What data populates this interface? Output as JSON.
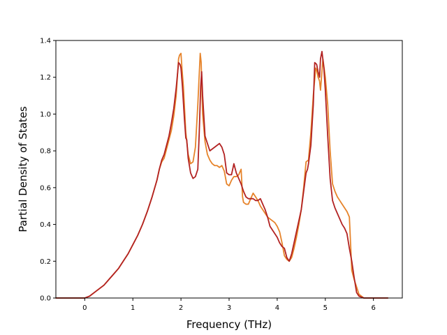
{
  "chart_data": {
    "type": "line",
    "title": "",
    "xlabel": "Frequency (THz)",
    "ylabel": "Partial Density of States",
    "xlim": [
      -0.6,
      6.6
    ],
    "ylim": [
      0.0,
      1.4
    ],
    "xticks": [
      0,
      1,
      2,
      3,
      4,
      5,
      6
    ],
    "xtick_labels": [
      "0",
      "1",
      "2",
      "3",
      "4",
      "5",
      "6"
    ],
    "yticks": [
      0.0,
      0.2,
      0.4,
      0.6,
      0.8,
      1.0,
      1.2,
      1.4
    ],
    "ytick_labels": [
      "0.0",
      "0.2",
      "0.4",
      "0.6",
      "0.8",
      "1.0",
      "1.2",
      "1.4"
    ],
    "grid": false,
    "legend": "none",
    "series": [
      {
        "color": "#e6832a",
        "x": [
          -0.6,
          0.0,
          0.05,
          0.1,
          0.2,
          0.3,
          0.4,
          0.5,
          0.6,
          0.7,
          0.8,
          0.9,
          1.0,
          1.1,
          1.2,
          1.3,
          1.4,
          1.5,
          1.55,
          1.6,
          1.65,
          1.7,
          1.75,
          1.8,
          1.85,
          1.9,
          1.95,
          1.97,
          2.0,
          2.02,
          2.05,
          2.1,
          2.15,
          2.2,
          2.25,
          2.3,
          2.35,
          2.4,
          2.42,
          2.45,
          2.5,
          2.55,
          2.6,
          2.65,
          2.7,
          2.75,
          2.8,
          2.85,
          2.9,
          2.95,
          3.0,
          3.05,
          3.1,
          3.15,
          3.2,
          3.25,
          3.28,
          3.3,
          3.35,
          3.4,
          3.45,
          3.5,
          3.55,
          3.6,
          3.65,
          3.7,
          3.75,
          3.8,
          3.85,
          3.9,
          3.95,
          4.0,
          4.05,
          4.1,
          4.15,
          4.2,
          4.25,
          4.3,
          4.35,
          4.4,
          4.45,
          4.5,
          4.55,
          4.6,
          4.65,
          4.7,
          4.75,
          4.8,
          4.82,
          4.85,
          4.88,
          4.9,
          4.95,
          5.0,
          5.05,
          5.1,
          5.15,
          5.2,
          5.25,
          5.3,
          5.35,
          5.4,
          5.45,
          5.5,
          5.55,
          5.6,
          5.65,
          5.7,
          5.75,
          5.8,
          6.3
        ],
        "values": [
          0.0,
          0.0,
          0.005,
          0.01,
          0.03,
          0.05,
          0.07,
          0.1,
          0.13,
          0.16,
          0.2,
          0.24,
          0.29,
          0.34,
          0.4,
          0.47,
          0.55,
          0.64,
          0.7,
          0.74,
          0.76,
          0.81,
          0.86,
          0.91,
          0.99,
          1.1,
          1.3,
          1.32,
          1.33,
          1.25,
          1.15,
          0.9,
          0.78,
          0.73,
          0.74,
          0.82,
          1.05,
          1.33,
          1.28,
          1.0,
          0.85,
          0.78,
          0.75,
          0.73,
          0.72,
          0.72,
          0.71,
          0.72,
          0.69,
          0.62,
          0.61,
          0.64,
          0.66,
          0.66,
          0.67,
          0.7,
          0.55,
          0.52,
          0.51,
          0.51,
          0.54,
          0.57,
          0.55,
          0.53,
          0.5,
          0.48,
          0.46,
          0.44,
          0.43,
          0.42,
          0.41,
          0.39,
          0.36,
          0.3,
          0.23,
          0.21,
          0.2,
          0.22,
          0.27,
          0.33,
          0.4,
          0.48,
          0.6,
          0.74,
          0.75,
          0.9,
          1.1,
          1.25,
          1.24,
          1.2,
          1.18,
          1.13,
          1.3,
          1.2,
          1.05,
          0.8,
          0.62,
          0.58,
          0.55,
          0.53,
          0.51,
          0.49,
          0.47,
          0.44,
          0.15,
          0.1,
          0.06,
          0.02,
          0.01,
          0.0,
          0.0
        ]
      },
      {
        "color": "#b22222",
        "x": [
          -0.6,
          0.0,
          0.05,
          0.1,
          0.2,
          0.3,
          0.4,
          0.5,
          0.6,
          0.7,
          0.8,
          0.9,
          1.0,
          1.1,
          1.2,
          1.3,
          1.4,
          1.5,
          1.55,
          1.6,
          1.65,
          1.7,
          1.75,
          1.8,
          1.85,
          1.9,
          1.95,
          1.98,
          2.0,
          2.03,
          2.07,
          2.1,
          2.12,
          2.15,
          2.2,
          2.25,
          2.3,
          2.35,
          2.38,
          2.41,
          2.43,
          2.45,
          2.5,
          2.55,
          2.6,
          2.65,
          2.7,
          2.75,
          2.8,
          2.85,
          2.9,
          2.95,
          3.0,
          3.05,
          3.1,
          3.15,
          3.2,
          3.25,
          3.3,
          3.35,
          3.4,
          3.45,
          3.5,
          3.55,
          3.6,
          3.65,
          3.7,
          3.75,
          3.8,
          3.85,
          3.9,
          3.95,
          4.0,
          4.05,
          4.1,
          4.15,
          4.2,
          4.25,
          4.3,
          4.35,
          4.4,
          4.45,
          4.5,
          4.55,
          4.6,
          4.63,
          4.65,
          4.7,
          4.75,
          4.78,
          4.82,
          4.85,
          4.88,
          4.9,
          4.93,
          4.97,
          5.0,
          5.05,
          5.1,
          5.15,
          5.2,
          5.25,
          5.3,
          5.35,
          5.4,
          5.45,
          5.5,
          5.55,
          5.6,
          5.65,
          5.7,
          5.8,
          6.3
        ],
        "values": [
          0.0,
          0.0,
          0.005,
          0.01,
          0.03,
          0.05,
          0.07,
          0.1,
          0.13,
          0.16,
          0.2,
          0.24,
          0.29,
          0.34,
          0.4,
          0.47,
          0.55,
          0.64,
          0.7,
          0.75,
          0.78,
          0.83,
          0.88,
          0.95,
          1.03,
          1.14,
          1.28,
          1.27,
          1.25,
          1.15,
          0.98,
          0.87,
          0.86,
          0.76,
          0.68,
          0.65,
          0.66,
          0.7,
          0.9,
          1.15,
          1.23,
          1.1,
          0.88,
          0.84,
          0.8,
          0.81,
          0.82,
          0.83,
          0.84,
          0.82,
          0.78,
          0.68,
          0.67,
          0.67,
          0.73,
          0.68,
          0.65,
          0.62,
          0.58,
          0.55,
          0.54,
          0.54,
          0.54,
          0.53,
          0.53,
          0.54,
          0.51,
          0.48,
          0.44,
          0.39,
          0.37,
          0.35,
          0.33,
          0.3,
          0.28,
          0.27,
          0.22,
          0.2,
          0.24,
          0.3,
          0.36,
          0.42,
          0.48,
          0.58,
          0.68,
          0.7,
          0.73,
          0.83,
          1.05,
          1.28,
          1.27,
          1.23,
          1.2,
          1.3,
          1.34,
          1.25,
          1.13,
          0.88,
          0.65,
          0.53,
          0.49,
          0.46,
          0.43,
          0.4,
          0.38,
          0.35,
          0.27,
          0.2,
          0.11,
          0.03,
          0.01,
          0.0,
          0.0
        ]
      }
    ]
  }
}
